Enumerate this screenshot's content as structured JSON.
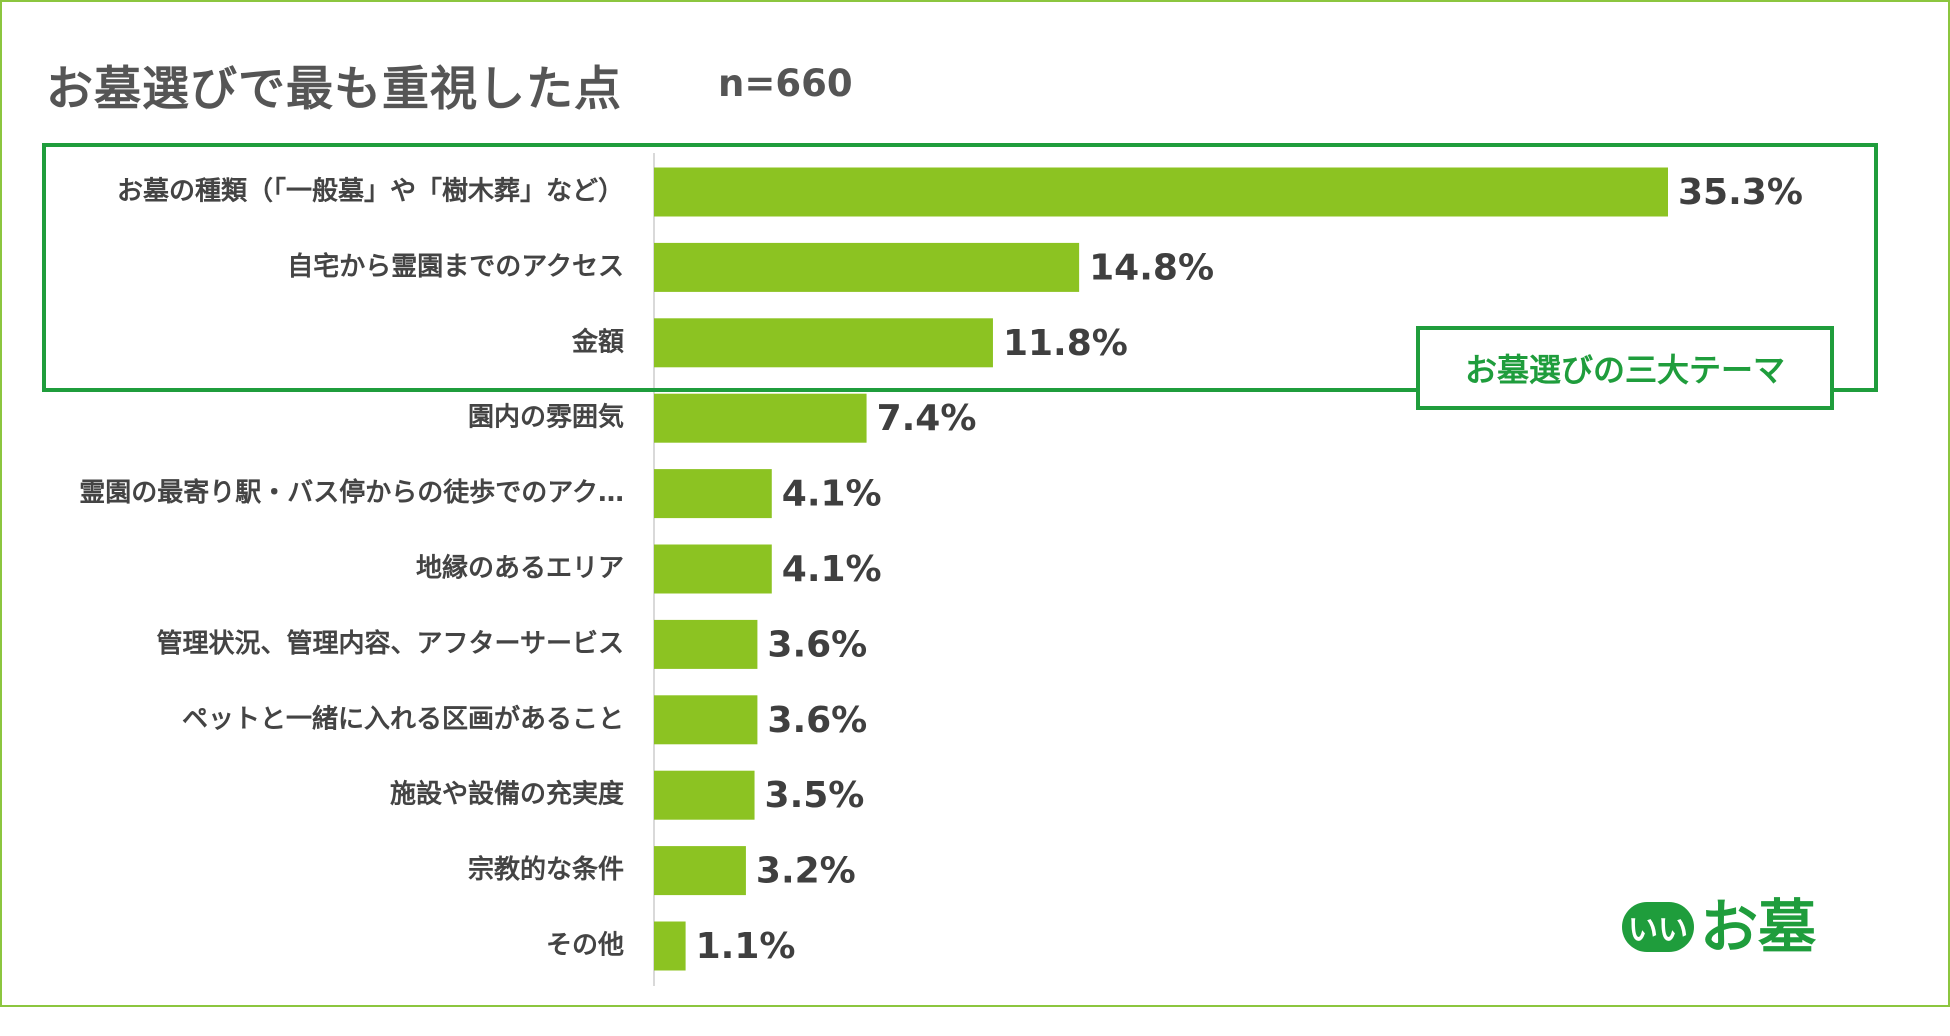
{
  "header": {
    "title": "お墓選びで最も重視した点",
    "sample": "n=660"
  },
  "callout": {
    "label": "お墓選びの三大テーマ"
  },
  "brand": {
    "badge": "いい",
    "name": "お墓"
  },
  "colors": {
    "bar": "#8cc322",
    "highlight": "#1f9d3c",
    "frame": "#8cc63f",
    "text": "#444444"
  },
  "chart_data": {
    "type": "bar",
    "orientation": "horizontal",
    "unit": "%",
    "categories": [
      "お墓の種類（「一般墓」や「樹木葬」など）",
      "自宅から霊園までのアクセス",
      "金額",
      "園内の雰囲気",
      "霊園の最寄り駅・バス停からの徒歩でのアク…",
      "地縁のあるエリア",
      "管理状況、管理内容、アフターサービス",
      "ペットと一緒に入れる区画があること",
      "施設や設備の充実度",
      "宗教的な条件",
      "その他"
    ],
    "values": [
      35.3,
      14.8,
      11.8,
      7.4,
      4.1,
      4.1,
      3.6,
      3.6,
      3.5,
      3.2,
      1.1
    ],
    "value_labels": [
      "35.3%",
      "14.8%",
      "11.8%",
      "7.4%",
      "4.1%",
      "4.1%",
      "3.6%",
      "3.6%",
      "3.5%",
      "3.2%",
      "1.1%"
    ],
    "xlim": [
      0,
      40
    ],
    "grid": false,
    "highlighted_categories": [
      "お墓の種類（「一般墓」や「樹木葬」など）",
      "自宅から霊園までのアクセス",
      "金額"
    ]
  }
}
